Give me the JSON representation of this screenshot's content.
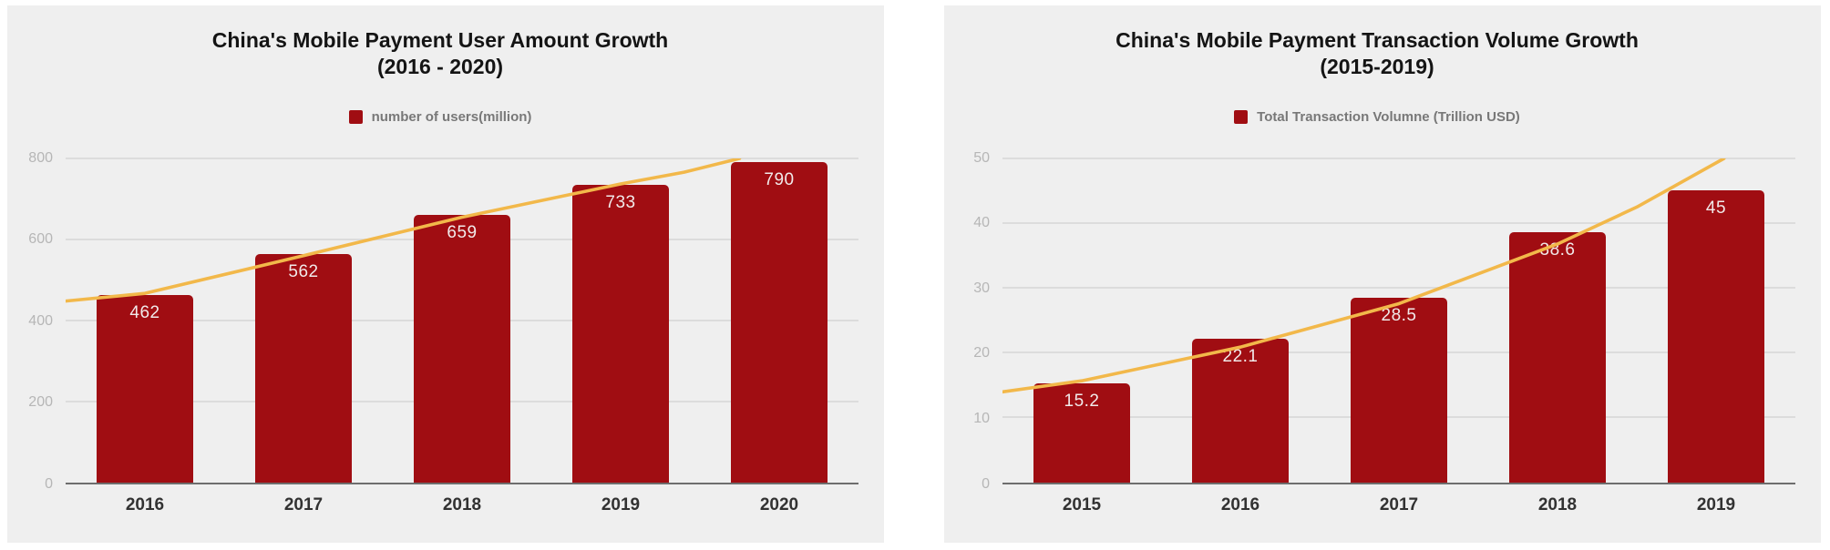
{
  "page": {
    "background": "#ffffff",
    "panel_background": "#efefef",
    "gridline_color": "#dcdcdc",
    "baseline_color": "#6d6d6d",
    "ytick_color": "#b6b6b6",
    "xtick_color": "#323232"
  },
  "chart_data": [
    {
      "type": "bar",
      "title_line1": "China's Mobile Payment User Amount Growth",
      "title_line2": "(2016 - 2020)",
      "legend": "number of users(million)",
      "legend_position": "top",
      "grid": true,
      "categories": [
        "2016",
        "2017",
        "2018",
        "2019",
        "2020"
      ],
      "values": [
        462,
        562,
        659,
        733,
        790
      ],
      "value_labels": [
        "462",
        "562",
        "659",
        "733",
        "790"
      ],
      "ylim": [
        0,
        800
      ],
      "yticks": [
        "800",
        "600",
        "400",
        "200",
        "0"
      ],
      "bar_color": "#a00d12",
      "trend_color": "#f2b84a",
      "trendline": [
        [
          0,
          448
        ],
        [
          0.1,
          467
        ],
        [
          0.3,
          560
        ],
        [
          0.5,
          655
        ],
        [
          0.7,
          737
        ],
        [
          0.78,
          766
        ],
        [
          0.85,
          800
        ]
      ]
    },
    {
      "type": "bar",
      "title_line1": "China's Mobile Payment Transaction Volume Growth",
      "title_line2": "(2015-2019)",
      "legend": "Total Transaction Volumne (Trillion USD)",
      "legend_position": "top",
      "grid": true,
      "categories": [
        "2015",
        "2016",
        "2017",
        "2018",
        "2019"
      ],
      "values": [
        15.2,
        22.1,
        28.5,
        38.6,
        45
      ],
      "value_labels": [
        "15.2",
        "22.1",
        "28.5",
        "38.6",
        "45"
      ],
      "ylim": [
        0,
        50
      ],
      "yticks": [
        "50",
        "40",
        "30",
        "20",
        "10",
        "0"
      ],
      "bar_color": "#a00d12",
      "trend_color": "#f2b84a",
      "trendline": [
        [
          0,
          14
        ],
        [
          0.1,
          15.7
        ],
        [
          0.3,
          20.9
        ],
        [
          0.5,
          27.6
        ],
        [
          0.7,
          36.8
        ],
        [
          0.8,
          42.5
        ],
        [
          0.91,
          50
        ]
      ]
    }
  ]
}
